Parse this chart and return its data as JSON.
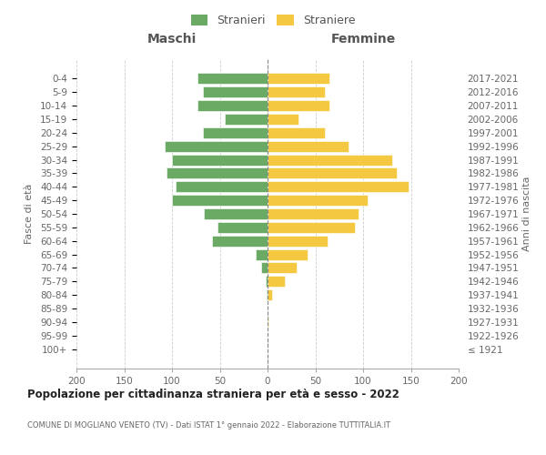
{
  "age_groups": [
    "100+",
    "95-99",
    "90-94",
    "85-89",
    "80-84",
    "75-79",
    "70-74",
    "65-69",
    "60-64",
    "55-59",
    "50-54",
    "45-49",
    "40-44",
    "35-39",
    "30-34",
    "25-29",
    "20-24",
    "15-19",
    "10-14",
    "5-9",
    "0-4"
  ],
  "birth_years": [
    "≤ 1921",
    "1922-1926",
    "1927-1931",
    "1932-1936",
    "1937-1941",
    "1942-1946",
    "1947-1951",
    "1952-1956",
    "1957-1961",
    "1962-1966",
    "1967-1971",
    "1972-1976",
    "1977-1981",
    "1982-1986",
    "1987-1991",
    "1992-1996",
    "1997-2001",
    "2002-2006",
    "2007-2011",
    "2012-2016",
    "2017-2021"
  ],
  "males": [
    0,
    0,
    0,
    0,
    1,
    2,
    7,
    12,
    58,
    52,
    67,
    100,
    96,
    106,
    100,
    108,
    68,
    45,
    73,
    68,
    73
  ],
  "females": [
    0,
    0,
    1,
    0,
    5,
    18,
    30,
    42,
    63,
    91,
    95,
    105,
    148,
    135,
    130,
    85,
    60,
    32,
    65,
    60,
    65
  ],
  "male_color": "#6aaa64",
  "female_color": "#f5c842",
  "male_label": "Stranieri",
  "female_label": "Straniere",
  "title": "Popolazione per cittadinanza straniera per età e sesso - 2022",
  "subtitle": "COMUNE DI MOGLIANO VENETO (TV) - Dati ISTAT 1° gennaio 2022 - Elaborazione TUTTITALIA.IT",
  "ylabel_left": "Fasce di età",
  "ylabel_right": "Anni di nascita",
  "label_maschi": "Maschi",
  "label_femmine": "Femmine",
  "xlim": 200,
  "background_color": "#ffffff",
  "grid_color": "#cccccc",
  "bar_height": 0.8
}
